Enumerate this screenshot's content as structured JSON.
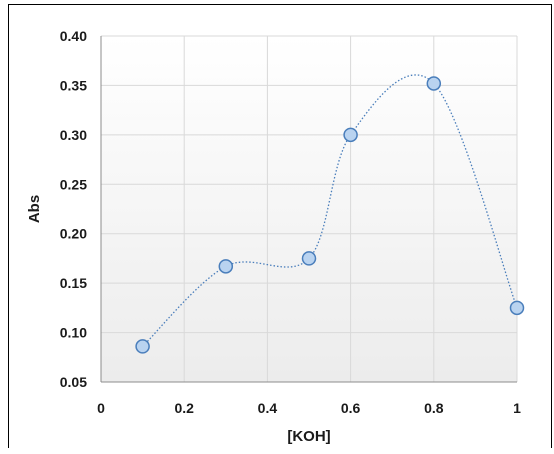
{
  "chart_data": {
    "type": "scatter",
    "title": "",
    "xlabel": "[KOH]",
    "ylabel": "Abs",
    "xlim": [
      0,
      1
    ],
    "ylim": [
      0.05,
      0.4
    ],
    "x_ticks": [
      "0",
      "0.2",
      "0.4",
      "0.6",
      "0.8",
      "1"
    ],
    "y_ticks": [
      "0.40",
      "0.35",
      "0.30",
      "0.25",
      "0.20",
      "0.15",
      "0.10",
      "0.05"
    ],
    "grid": true,
    "smoothed_line": true,
    "series": [
      {
        "x": [
          0.1,
          0.3,
          0.5,
          0.6,
          0.8,
          1.0
        ],
        "y": [
          0.086,
          0.167,
          0.175,
          0.3,
          0.352,
          0.125
        ]
      }
    ],
    "colors": {
      "marker_fill": "#b9d3f0",
      "marker_stroke": "#4a7ebb",
      "line": "#4a7ebb",
      "grid": "#d9d9d9",
      "plot_background_top": "#ffffff",
      "plot_background_bottom": "#ececec"
    }
  }
}
